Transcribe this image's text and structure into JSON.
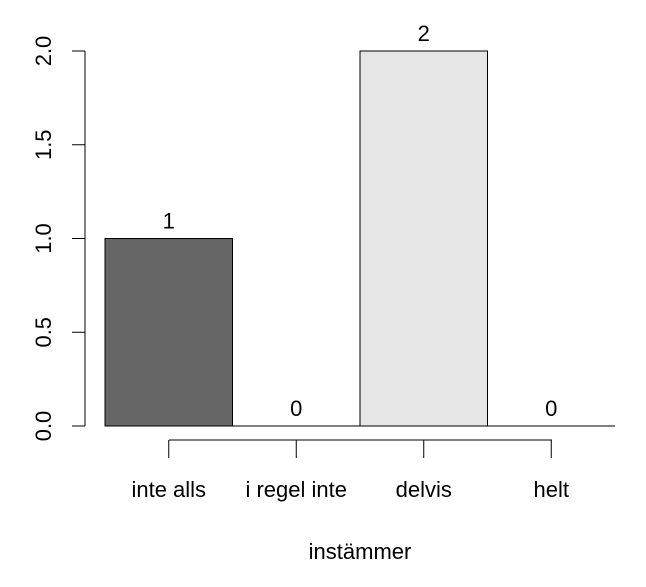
{
  "chart_data": {
    "type": "bar",
    "x_label": "instämmer",
    "categories": [
      "inte alls",
      "i regel inte",
      "delvis",
      "helt"
    ],
    "values": [
      1,
      0,
      2,
      0
    ],
    "colors": [
      "#666666",
      "#a6a6a6",
      "#e6e6e6",
      "#ffffff"
    ],
    "ylim": [
      0,
      2
    ],
    "yticks": [
      {
        "value": 0,
        "label": "0.0"
      },
      0.5,
      {
        "value": 1,
        "label": "1.0"
      },
      1.5,
      {
        "value": 2,
        "label": "2.0"
      }
    ]
  }
}
